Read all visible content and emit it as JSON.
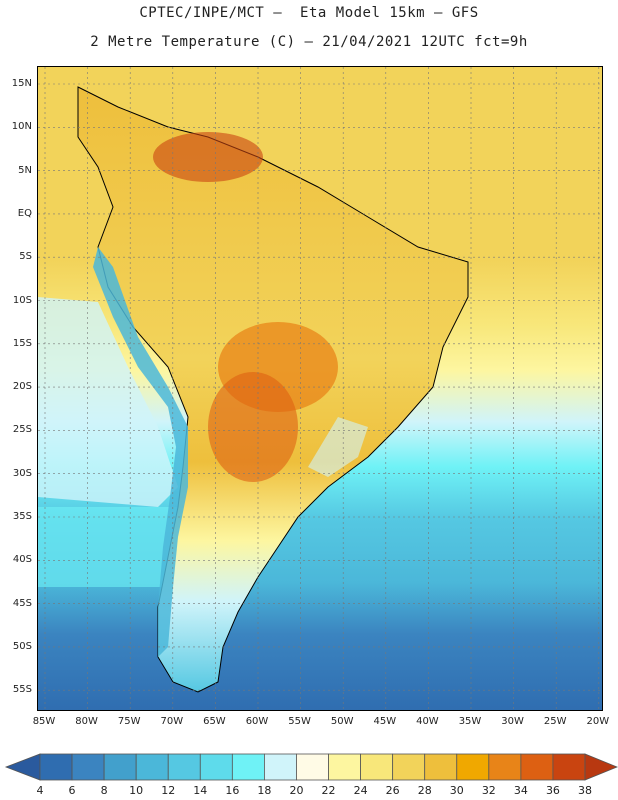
{
  "header": {
    "line1": "CPTEC/INPE/MCT –  Eta Model 15km – GFS",
    "line2": "2 Metre Temperature (C) – 21/04/2021 12UTC fct=9h"
  },
  "axes": {
    "lat_labels": [
      "15N",
      "10N",
      "5N",
      "EQ",
      "5S",
      "10S",
      "15S",
      "20S",
      "25S",
      "30S",
      "35S",
      "40S",
      "45S",
      "50S",
      "55S"
    ],
    "lon_labels": [
      "85W",
      "80W",
      "75W",
      "70W",
      "65W",
      "60W",
      "55W",
      "50W",
      "45W",
      "40W",
      "35W",
      "30W",
      "25W",
      "20W"
    ]
  },
  "colorbar": {
    "labels": [
      "4",
      "6",
      "8",
      "10",
      "12",
      "14",
      "16",
      "18",
      "20",
      "22",
      "24",
      "26",
      "28",
      "30",
      "32",
      "34",
      "36",
      "38"
    ],
    "colors": [
      "#2f6db0",
      "#3b84c0",
      "#42a0cc",
      "#4bb7d9",
      "#55c8e2",
      "#5edbeb",
      "#6ff2f6",
      "#d0f4fa",
      "#fffbe6",
      "#fdf6a0",
      "#f8e77a",
      "#f2d35a",
      "#eebf3c",
      "#f0a800",
      "#e88418",
      "#dd6012",
      "#c94410"
    ],
    "low_arrow_color": "#2a5a9e",
    "high_arrow_color": "#b83810"
  },
  "field": {
    "description_colors": {
      "ocean_north": "#f2d35a",
      "ocean_subtropic": "#fdf6a0",
      "ocean_mid": "#d0f4fa",
      "ocean_south": "#55c8e2",
      "ocean_far_south": "#2f6db0",
      "land": "#f2d35a",
      "hot_land": "#e88418",
      "andes": "#4bb7d9"
    }
  }
}
